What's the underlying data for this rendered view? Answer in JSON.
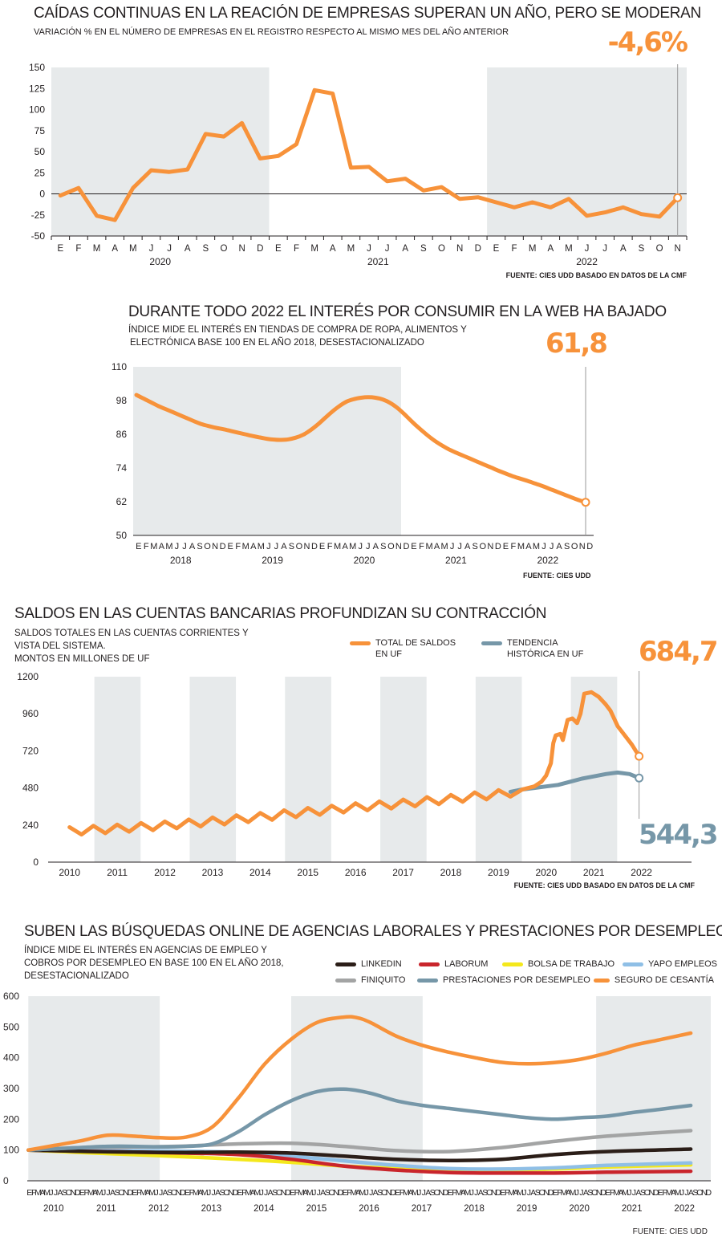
{
  "colors": {
    "orange": "#f7923a",
    "steel": "#7697a8",
    "shade": "#e7eaeb",
    "axis": "#231f20",
    "linkedin": "#2b1e18",
    "laborum": "#c9252c",
    "bolsa": "#f4e81c",
    "yapo": "#8fbfe6",
    "finiquito": "#a3a4a4",
    "prestaciones": "#7697a8",
    "seguro": "#f7923a"
  },
  "chart1": {
    "title": "CAÍDAS CONTINUAS EN LA REACIÓN DE EMPRESAS SUPERAN UN AÑO, PERO SE MODERAN",
    "subtitle": "VARIACIÓN % EN EL NÚMERO DE EMPRESAS EN EL REGISTRO RESPECTO AL MISMO MES DEL AÑO ANTERIOR",
    "highlight": "-4,6%",
    "source": "FUENTE: CIES UDD BASADO EN DATOS DE LA CMF"
  },
  "chart2": {
    "title": "DURANTE TODO 2022 EL INTERÉS POR CONSUMIR EN LA WEB HA BAJADO",
    "subtitle_line1": "ÍNDICE MIDE EL INTERÉS EN TIENDAS DE COMPRA DE ROPA, ALIMENTOS Y",
    "subtitle_line2": "ELECTRÓNICA BASE 100 EN EL AÑO 2018, DESESTACIONALIZADO",
    "highlight": "61,8",
    "source": "FUENTE: CIES UDD"
  },
  "chart3": {
    "title": "SALDOS EN LAS CUENTAS BANCARIAS PROFUNDIZAN SU CONTRACCIÓN",
    "subtitle_line1": "SALDOS TOTALES EN LAS CUENTAS CORRIENTES Y",
    "subtitle_line2": "VISTA DEL SISTEMA.",
    "subtitle_line3": "MONTOS EN MILLONES DE UF",
    "highlight_total": "684,7",
    "highlight_trend": "544,3",
    "source": "FUENTE: CIES UDD BASADO EN DATOS DE LA CMF"
  },
  "chart4": {
    "title": "SUBEN LAS BÚSQUEDAS ONLINE DE AGENCIAS LABORALES Y PRESTACIONES POR DESEMPLEO",
    "subtitle_line1": "ÍNDICE MIDE EL INTERÉS EN AGENCIAS DE EMPLEO Y",
    "subtitle_line2": "COBROS POR DESEMPLEO EN BASE 100 EN EL AÑO 2018,",
    "subtitle_line3": "DESESTACIONALIZADO",
    "source": "FUENTE: CIES UDD"
  },
  "chart_data": [
    {
      "type": "line",
      "months": [
        "E",
        "F",
        "M",
        "A",
        "M",
        "J",
        "J",
        "A",
        "S",
        "O",
        "N",
        "D",
        "E",
        "F",
        "M",
        "A",
        "M",
        "J",
        "J",
        "A",
        "S",
        "O",
        "N",
        "D",
        "E",
        "F",
        "M",
        "A",
        "M",
        "J",
        "J",
        "A",
        "S",
        "O",
        "N"
      ],
      "years": [
        "2020",
        "2021",
        "2022"
      ],
      "series": [
        {
          "name": "",
          "values": [
            -2,
            7,
            -26,
            -31,
            7,
            28,
            26,
            29,
            71,
            68,
            84,
            42,
            45,
            59,
            123,
            119,
            31,
            32,
            15,
            18,
            4,
            8,
            -6,
            -4,
            -10,
            -16,
            -10,
            -16,
            -6,
            -26,
            -22,
            -16,
            -24,
            -27,
            -4.6
          ]
        }
      ],
      "ylim": [
        -50,
        150
      ],
      "yticks": [
        -50,
        -25,
        0,
        25,
        50,
        75,
        100,
        125,
        150
      ],
      "shaded": [
        [
          0,
          11
        ],
        [
          24,
          34
        ]
      ]
    },
    {
      "type": "line",
      "x_letters": "EFMAMJJASONDEFMAMJJASONDEFMAMJJASONDEFMAMJJASONDEFMAMJJASOND",
      "years": [
        "2018",
        "2019",
        "2020",
        "2021",
        "2022"
      ],
      "series": [
        {
          "name": "",
          "values": [
            100,
            98.7,
            97.4,
            96.1,
            95,
            93.9,
            92.8,
            91.7,
            90.6,
            89.6,
            88.9,
            88.3,
            87.8,
            87.2,
            86.6,
            86,
            85.4,
            84.9,
            84.4,
            84.1,
            84,
            84.2,
            84.8,
            85.8,
            87.4,
            89.4,
            91.7,
            94,
            96,
            97.6,
            98.5,
            99,
            99.2,
            99,
            98.4,
            97.2,
            95.4,
            93.1,
            90.6,
            88.2,
            86,
            84,
            82.3,
            80.8,
            79.6,
            78.5,
            77.4,
            76.3,
            75.2,
            74.1,
            73,
            72,
            71,
            70.2,
            69.4,
            68.5,
            67.6,
            66.6,
            65.6,
            64.6,
            63.6,
            62.6,
            61.8
          ]
        }
      ],
      "ylim": [
        50,
        110
      ],
      "yticks": [
        50,
        62,
        74,
        86,
        98,
        110
      ],
      "shaded": [
        [
          0,
          35
        ]
      ]
    },
    {
      "type": "line",
      "years": [
        "2010",
        "2011",
        "2012",
        "2013",
        "2014",
        "2015",
        "2016",
        "2017",
        "2018",
        "2019",
        "2020",
        "2021",
        "2022"
      ],
      "series": [
        {
          "name": "TOTAL DE SALDOS EN UF",
          "x": [
            2010.0,
            2010.25,
            2010.5,
            2010.75,
            2011.0,
            2011.25,
            2011.5,
            2011.75,
            2012.0,
            2012.25,
            2012.5,
            2012.75,
            2013.0,
            2013.25,
            2013.5,
            2013.75,
            2014.0,
            2014.25,
            2014.5,
            2014.75,
            2015.0,
            2015.25,
            2015.5,
            2015.75,
            2016.0,
            2016.25,
            2016.5,
            2016.75,
            2017.0,
            2017.25,
            2017.5,
            2017.75,
            2018.0,
            2018.25,
            2018.5,
            2018.75,
            2019.0,
            2019.25,
            2019.5,
            2019.75,
            2019.9,
            2020.0,
            2020.1,
            2020.15,
            2020.2,
            2020.3,
            2020.35,
            2020.45,
            2020.55,
            2020.65,
            2020.72,
            2020.8,
            2020.95,
            2021.0,
            2021.1,
            2021.25,
            2021.35,
            2021.5,
            2021.65,
            2021.8,
            2021.95
          ],
          "values": [
            205,
            210,
            214,
            218,
            222,
            228,
            232,
            238,
            242,
            250,
            255,
            262,
            268,
            275,
            282,
            290,
            297,
            305,
            315,
            322,
            330,
            337,
            344,
            352,
            360,
            366,
            372,
            378,
            384,
            392,
            400,
            406,
            414,
            422,
            430,
            437,
            445,
            455,
            470,
            490,
            520,
            560,
            640,
            770,
            820,
            830,
            790,
            920,
            930,
            900,
            960,
            1090,
            1100,
            1090,
            1070,
            1020,
            980,
            880,
            820,
            760,
            685
          ]
        },
        {
          "name": "TENDENCIA HISTÓRICA EN UF",
          "x": [
            2019.25,
            2019.5,
            2019.75,
            2020.0,
            2020.25,
            2020.5,
            2020.75,
            2021.0,
            2021.25,
            2021.5,
            2021.75,
            2021.95
          ],
          "values": [
            455,
            470,
            480,
            490,
            500,
            520,
            540,
            555,
            570,
            580,
            570,
            544.3
          ]
        }
      ],
      "ylim": [
        0,
        1200
      ],
      "yticks": [
        0,
        240,
        480,
        720,
        960,
        1200
      ],
      "shaded_years": [
        "2011",
        "2013",
        "2015",
        "2017",
        "2019",
        "2021"
      ]
    },
    {
      "type": "line",
      "x_letters": "EFMAMJJASONDEFMAMJJASOND",
      "years": [
        "2010",
        "2011",
        "2012",
        "2013",
        "2014",
        "2015",
        "2016",
        "2017",
        "2018",
        "2019",
        "2020",
        "2021",
        "2022"
      ],
      "ylim": [
        0,
        600
      ],
      "yticks": [
        0,
        100,
        200,
        300,
        400,
        500,
        600
      ],
      "series": [
        {
          "name": "LINKEDIN",
          "x": [
            2010,
            2011,
            2012,
            2013,
            2014,
            2015,
            2016,
            2017,
            2018,
            2019,
            2020,
            2021,
            2022.6
          ],
          "values": [
            100,
            96,
            93,
            92,
            93,
            90,
            80,
            70,
            66,
            70,
            85,
            95,
            103
          ]
        },
        {
          "name": "LABORUM",
          "x": [
            2010,
            2011,
            2012,
            2013,
            2014,
            2015,
            2016,
            2017,
            2018,
            2019,
            2020,
            2021,
            2022.6
          ],
          "values": [
            100,
            96,
            93,
            90,
            85,
            70,
            48,
            35,
            27,
            25,
            25,
            28,
            31
          ]
        },
        {
          "name": "BOLSA DE TRABAJO",
          "x": [
            2010,
            2011,
            2012,
            2013,
            2014,
            2015,
            2016,
            2017,
            2018,
            2019,
            2020,
            2021,
            2022.6
          ],
          "values": [
            100,
            92,
            85,
            78,
            70,
            60,
            48,
            40,
            35,
            35,
            38,
            45,
            52
          ]
        },
        {
          "name": "YAPO EMPLEOS",
          "x": [
            2010,
            2011,
            2012,
            2013,
            2014,
            2015,
            2016,
            2017,
            2018,
            2019,
            2020,
            2021,
            2022.6
          ],
          "values": [
            100,
            98,
            97,
            96,
            92,
            80,
            65,
            50,
            40,
            38,
            42,
            50,
            58
          ]
        },
        {
          "name": "FINIQUITO",
          "x": [
            2010,
            2011,
            2012,
            2013,
            2014,
            2015,
            2016,
            2017,
            2018,
            2019,
            2020,
            2021,
            2022.6
          ],
          "values": [
            100,
            108,
            110,
            113,
            120,
            122,
            112,
            98,
            95,
            108,
            128,
            145,
            163
          ]
        },
        {
          "name": "PRESTACIONES POR DESEMPLEO",
          "x": [
            2010,
            2010.5,
            2011,
            2011.5,
            2012,
            2012.5,
            2013,
            2013.5,
            2014,
            2014.5,
            2015,
            2015.5,
            2016,
            2016.5,
            2017,
            2017.5,
            2018,
            2018.5,
            2019,
            2019.5,
            2020,
            2020.5,
            2021,
            2021.5,
            2022,
            2022.6
          ],
          "values": [
            100,
            104,
            108,
            112,
            112,
            110,
            112,
            120,
            160,
            215,
            260,
            290,
            298,
            285,
            260,
            245,
            235,
            225,
            215,
            205,
            200,
            205,
            210,
            222,
            232,
            245
          ]
        },
        {
          "name": "SEGURO DE CESANTÍA",
          "x": [
            2010,
            2010.5,
            2011,
            2011.5,
            2012,
            2012.5,
            2013,
            2013.5,
            2014,
            2014.5,
            2015,
            2015.5,
            2016,
            2016.25,
            2016.5,
            2017,
            2017.5,
            2018,
            2018.5,
            2019,
            2019.5,
            2020,
            2020.5,
            2021,
            2021.5,
            2022,
            2022.6
          ],
          "values": [
            100,
            115,
            130,
            148,
            145,
            140,
            142,
            175,
            270,
            380,
            460,
            515,
            532,
            530,
            515,
            470,
            440,
            418,
            400,
            385,
            380,
            384,
            395,
            415,
            440,
            458,
            480
          ]
        }
      ],
      "shaded_years": [
        "2010",
        "2011",
        "2014",
        "2015",
        "2016",
        "2020",
        "2021",
        "2022"
      ]
    }
  ]
}
